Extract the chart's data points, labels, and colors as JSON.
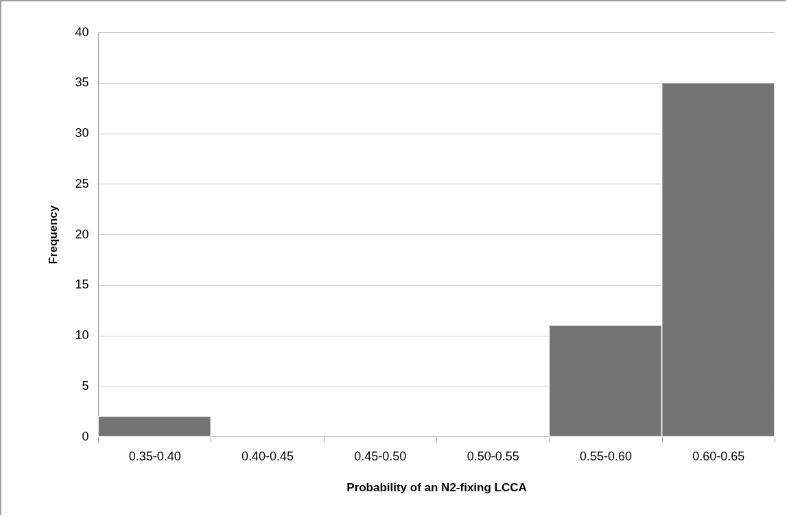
{
  "chart_data": {
    "type": "bar",
    "xlabel": "Probability of an N2-fixing LCCA",
    "ylabel": "Frequency",
    "categories": [
      "0.35-0.40",
      "0.40-0.45",
      "0.45-0.50",
      "0.50-0.55",
      "0.55-0.60",
      "0.60-0.65"
    ],
    "values": [
      2,
      0,
      0,
      0,
      11,
      35
    ],
    "color": "#737373",
    "ylim": [
      0,
      40
    ],
    "yticks": [
      0,
      5,
      10,
      15,
      20,
      25,
      30,
      35,
      40
    ],
    "grid": "y"
  }
}
